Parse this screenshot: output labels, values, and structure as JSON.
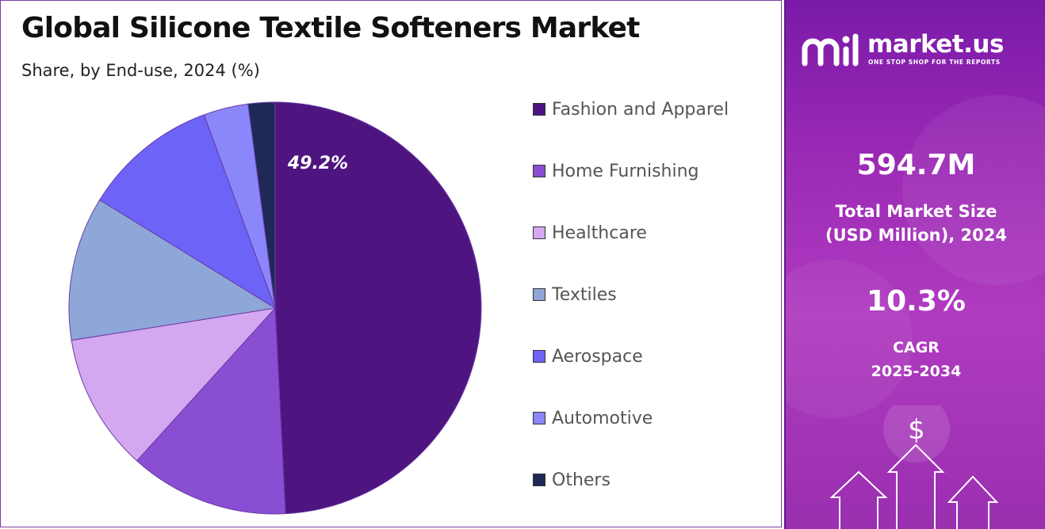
{
  "title": "Global Silicone Textile Softeners Market",
  "subtitle": "Share, by End-use, 2024 (%)",
  "chart_data": {
    "type": "pie",
    "title": "Global Silicone Textile Softeners Market",
    "subtitle": "Share, by End-use, 2024 (%)",
    "categories": [
      "Fashion and Apparel",
      "Home Furnishing",
      "Healthcare",
      "Textiles",
      "Aerospace",
      "Automotive",
      "Others"
    ],
    "values": [
      49.2,
      12.5,
      10.8,
      11.3,
      10.6,
      3.5,
      2.1
    ],
    "colors": [
      "#4e1580",
      "#8a4ed2",
      "#d4a8f0",
      "#8ea7d8",
      "#6d63f7",
      "#8b87fb",
      "#1e2a55"
    ],
    "data_labels": [
      "49.2%",
      "",
      "",
      "",
      "",
      "",
      ""
    ],
    "legend_position": "right"
  },
  "sidebar": {
    "brand_name": "market.us",
    "tagline": "ONE STOP SHOP FOR THE REPORTS",
    "market_size_value": "594.7M",
    "market_size_label_line1": "Total Market Size",
    "market_size_label_line2": "(USD Million), 2024",
    "cagr_value": "10.3%",
    "cagr_label_line1": "CAGR",
    "cagr_label_line2": "2025-2034",
    "graphic_icon": "dollar-growth-arrows-icon",
    "currency_symbol": "$"
  },
  "colors": {
    "panel_gradient_top": "#7a1aa8",
    "panel_gradient_bottom": "#b03bc0",
    "border": "#7a3aa4"
  }
}
